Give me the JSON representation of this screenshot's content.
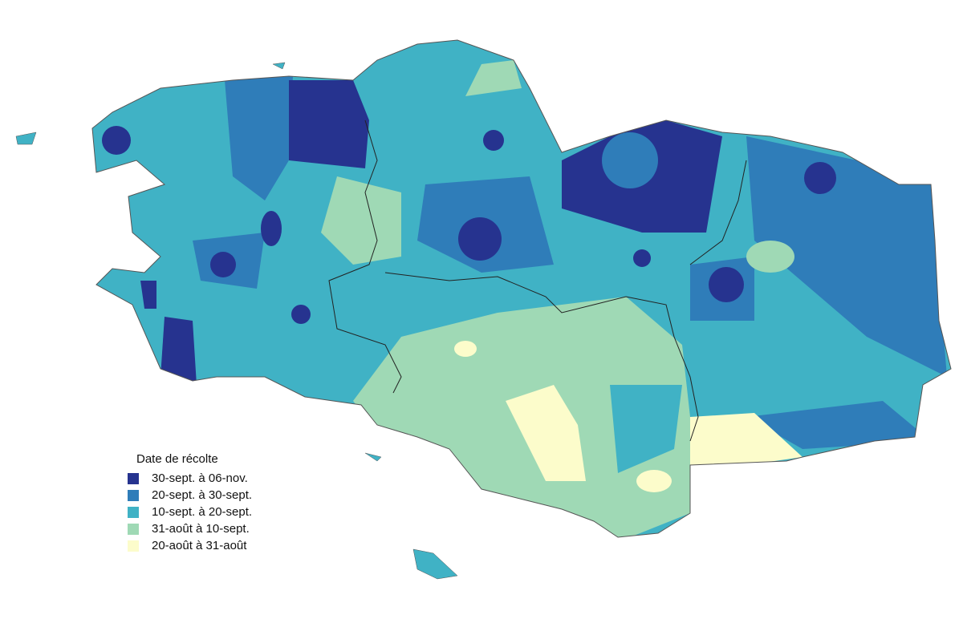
{
  "legend": {
    "title": "Date de récolte",
    "items": [
      {
        "label": "30-sept. à 06-nov.",
        "color": "#26338f"
      },
      {
        "label": "20-sept. à 30-sept.",
        "color": "#2f7db9"
      },
      {
        "label": "10-sept. à 20-sept.",
        "color": "#40b2c5"
      },
      {
        "label": "31-août à 10-sept.",
        "color": "#9fd9b5"
      },
      {
        "label": "20-août à 31-août",
        "color": "#fcfccb"
      }
    ]
  }
}
